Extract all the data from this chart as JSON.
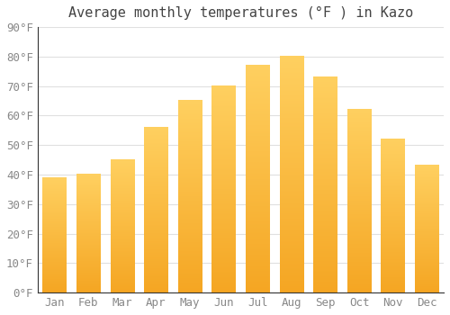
{
  "title": "Average monthly temperatures (°F ) in Kazo",
  "months": [
    "Jan",
    "Feb",
    "Mar",
    "Apr",
    "May",
    "Jun",
    "Jul",
    "Aug",
    "Sep",
    "Oct",
    "Nov",
    "Dec"
  ],
  "values": [
    39,
    40,
    45,
    56,
    65,
    70,
    77,
    80,
    73,
    62,
    52,
    43
  ],
  "bar_color_bottom": "#F5A623",
  "bar_color_top": "#FFD060",
  "ylim": [
    0,
    90
  ],
  "yticks": [
    0,
    10,
    20,
    30,
    40,
    50,
    60,
    70,
    80,
    90
  ],
  "ytick_labels": [
    "0°F",
    "10°F",
    "20°F",
    "30°F",
    "40°F",
    "50°F",
    "60°F",
    "70°F",
    "80°F",
    "90°F"
  ],
  "background_color": "#FFFFFF",
  "grid_color": "#E0E0E0",
  "title_fontsize": 11,
  "tick_fontsize": 9,
  "tick_color": "#888888",
  "figsize": [
    5.0,
    3.5
  ],
  "dpi": 100,
  "bar_width": 0.7
}
